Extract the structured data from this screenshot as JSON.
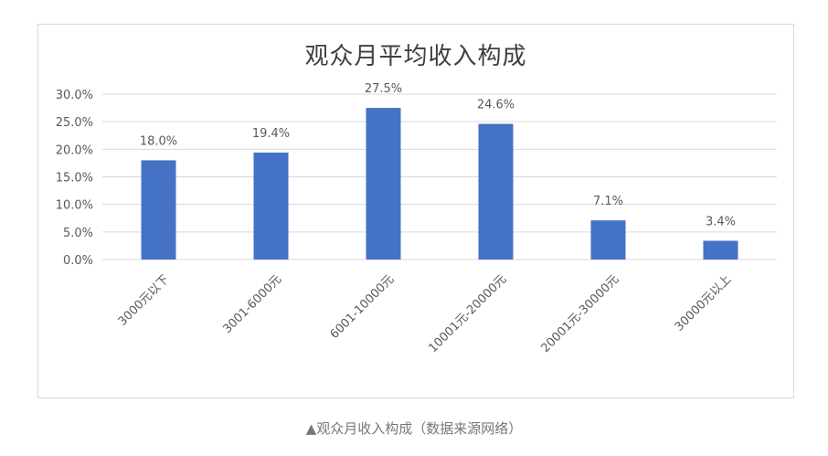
{
  "caption": "▲观众月收入构成（数据来源网络）",
  "chart_data": {
    "type": "bar",
    "title": "观众月平均收入构成",
    "categories": [
      "3000元以下",
      "3001-6000元",
      "6001-10000元",
      "10001元-20000元",
      "20001元-30000元",
      "30000元以上"
    ],
    "values": [
      18.0,
      19.4,
      27.5,
      24.6,
      7.1,
      3.4
    ],
    "data_labels": [
      "18.0%",
      "19.4%",
      "27.5%",
      "24.6%",
      "7.1%",
      "3.4%"
    ],
    "y_ticks": [
      "0.0%",
      "5.0%",
      "10.0%",
      "15.0%",
      "20.0%",
      "25.0%",
      "30.0%"
    ],
    "ylim": [
      0,
      30
    ],
    "grid": true,
    "bar_color": "#4472C4",
    "grid_color": "#d9d9d9",
    "text_color": "#595959"
  }
}
